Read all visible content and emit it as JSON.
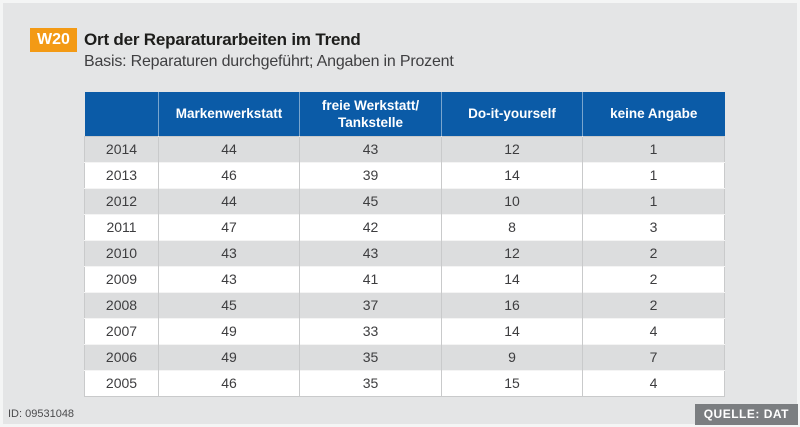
{
  "figure": {
    "tag": "W20",
    "title": "Ort der Reparaturarbeiten im Trend",
    "subtitle": "Basis: Reparaturen durchgeführt; Angaben in Prozent"
  },
  "chart_data": {
    "type": "table",
    "columns": [
      "",
      "Markenwerkstatt",
      "freie Werkstatt/\nTankstelle",
      "Do-it-yourself",
      "keine Angabe"
    ],
    "rows": [
      {
        "year": "2014",
        "values": [
          44,
          43,
          12,
          1
        ]
      },
      {
        "year": "2013",
        "values": [
          46,
          39,
          14,
          1
        ]
      },
      {
        "year": "2012",
        "values": [
          44,
          45,
          10,
          1
        ]
      },
      {
        "year": "2011",
        "values": [
          47,
          42,
          8,
          3
        ]
      },
      {
        "year": "2010",
        "values": [
          43,
          43,
          12,
          2
        ]
      },
      {
        "year": "2009",
        "values": [
          43,
          41,
          14,
          2
        ]
      },
      {
        "year": "2008",
        "values": [
          45,
          37,
          16,
          2
        ]
      },
      {
        "year": "2007",
        "values": [
          49,
          33,
          14,
          4
        ]
      },
      {
        "year": "2006",
        "values": [
          49,
          35,
          9,
          7
        ]
      },
      {
        "year": "2005",
        "values": [
          46,
          35,
          15,
          4
        ]
      }
    ],
    "title": "Ort der Reparaturarbeiten im Trend",
    "subtitle": "Basis: Reparaturen durchgeführt; Angaben in Prozent",
    "unit": "Prozent"
  },
  "footer": {
    "id_label": "ID: 09531048",
    "source_label": "QUELLE: DAT"
  },
  "colors": {
    "background": "#e4e5e6",
    "header_blue": "#0b5ba7",
    "badge_orange": "#f39a15",
    "row_gray": "#dcddde",
    "row_white": "#ffffff",
    "source_badge_gray": "#7b7e81"
  }
}
